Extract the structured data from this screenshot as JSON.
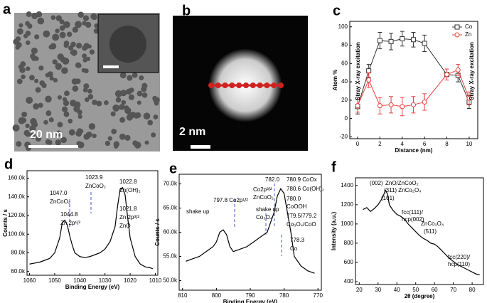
{
  "panels": {
    "a": {
      "label": "a",
      "scale": "20 nm"
    },
    "b": {
      "label": "b",
      "scale": "2 nm"
    },
    "c": "c",
    "d": "d",
    "e": "e",
    "f": "f"
  },
  "chart_data": [
    {
      "type": "line",
      "x_label": "Distance (nm)",
      "y_label": "Atom %",
      "x": [
        0,
        1,
        2,
        3,
        4,
        5,
        6,
        8,
        9,
        10
      ],
      "series": [
        {
          "name": "Co",
          "color": "#333333",
          "marker": "square",
          "values": [
            13,
            52,
            85,
            84,
            87,
            86,
            82,
            48,
            47,
            18
          ],
          "errors": [
            8,
            7,
            9,
            9,
            8,
            8,
            9,
            6,
            7,
            7
          ]
        },
        {
          "name": "Zn",
          "color": "#e8413c",
          "marker": "circle",
          "values": [
            14,
            42,
            14,
            15,
            13,
            15,
            18,
            48,
            53,
            22
          ],
          "errors": [
            7,
            8,
            9,
            9,
            10,
            9,
            9,
            6,
            6,
            7
          ]
        }
      ],
      "xlim": [
        -0.7,
        10.77
      ],
      "ylim": [
        -22,
        106
      ],
      "xticks": [
        0,
        2,
        4,
        6,
        8,
        10
      ],
      "yticks": [
        -20,
        0,
        20,
        40,
        60,
        80,
        100
      ],
      "legend": "upper right",
      "annotations": [
        "Stray X-ray excitation",
        "Stray X-ray excitation"
      ]
    },
    {
      "type": "line",
      "x_label": "Binding Energy (eV)",
      "y_label": "Counts / s",
      "x": [
        1060,
        1058,
        1056,
        1054,
        1052,
        1050,
        1048,
        1047,
        1046,
        1045,
        1044,
        1043,
        1042,
        1040,
        1038,
        1036,
        1034,
        1032,
        1030,
        1028,
        1026,
        1025,
        1024,
        1023,
        1022,
        1021,
        1020,
        1018,
        1016,
        1014,
        1012,
        1011
      ],
      "series": [
        {
          "color": "#000000",
          "values": [
            68000,
            69000,
            70000,
            72000,
            74000,
            80000,
            96000,
            112000,
            115000,
            110000,
            98000,
            88000,
            80000,
            76000,
            75000,
            76000,
            78000,
            80000,
            84000,
            92000,
            108000,
            130000,
            148000,
            150000,
            142000,
            118000,
            96000,
            76000,
            68000,
            65000,
            64000,
            63000
          ]
        }
      ],
      "xlim": [
        1061,
        1009
      ],
      "ylim": [
        56000,
        168000
      ],
      "xticks": [
        1060,
        1050,
        1040,
        1030,
        1020,
        1010
      ],
      "yticks": [
        {
          "value": 60000,
          "label": "60.0k"
        },
        {
          "value": 80000,
          "label": "80.0k"
        },
        {
          "value": 100000,
          "label": "100.0k"
        },
        {
          "value": 120000,
          "label": "120.0k"
        },
        {
          "value": 140000,
          "label": "140.0k"
        },
        {
          "value": 160000,
          "label": "160.0k"
        }
      ],
      "annotations": [
        "1047.0",
        "ZnCoO₂",
        "1044.8",
        "Zn 2p¹/²",
        "1023.9",
        "ZnCoO₂",
        "1022.8",
        "Zn(OH)₂",
        "1021.8",
        "Zn 2p³/²",
        "ZnO"
      ]
    },
    {
      "type": "line",
      "x_label": "Binding Energy (eV)",
      "y_label": "Counts / s",
      "x": [
        809,
        807,
        805,
        803,
        801,
        800,
        799,
        798,
        797,
        796,
        795,
        793,
        791,
        789,
        787,
        785,
        784,
        783,
        782,
        781,
        780,
        779,
        778,
        777,
        776,
        775,
        773,
        771
      ],
      "series": [
        {
          "color": "#000000",
          "values": [
            54000,
            54500,
            55000,
            56000,
            57000,
            58000,
            60000,
            60500,
            59500,
            57000,
            56000,
            56500,
            57000,
            58000,
            59000,
            60000,
            62000,
            64000,
            67500,
            69000,
            68000,
            64000,
            60000,
            55000,
            54000,
            53000,
            52000,
            51500
          ]
        }
      ],
      "xlim": [
        811,
        769
      ],
      "ylim": [
        48000,
        72000
      ],
      "xticks": [
        810,
        800,
        790,
        780,
        770
      ],
      "yticks": [
        {
          "value": 50000,
          "label": "50.0k"
        },
        {
          "value": 55000,
          "label": "55.0k"
        },
        {
          "value": 60000,
          "label": "60.0k"
        },
        {
          "value": 65000,
          "label": "65.0k"
        },
        {
          "value": 70000,
          "label": "70.0k"
        }
      ],
      "annotations": [
        "shake up",
        "797.8 Co2p¹/²",
        "Co2p³/²",
        "ZnCoO₂",
        "shake up",
        "Co₃O₄",
        "782.0",
        "780.9 CoOx",
        "780.6 Co(OH)₂",
        "780.0",
        "CoOOH",
        "779.5/779.2",
        "Co₃O₄/CoO",
        "778.3",
        "Co"
      ]
    },
    {
      "type": "line",
      "x_label": "2θ (degree)",
      "y_label": "Intensity (a.u.)",
      "x": [
        22,
        24,
        26,
        28,
        30,
        32,
        34,
        35,
        36,
        38,
        40,
        42,
        44,
        46,
        48,
        50,
        52,
        54,
        56,
        58,
        60,
        62,
        64,
        66,
        68,
        70,
        72,
        74,
        76,
        78,
        80,
        82,
        84
      ],
      "series": [
        {
          "color": "#000000",
          "values": [
            1150,
            1170,
            1130,
            1160,
            1200,
            1260,
            1350,
            1310,
            1200,
            1140,
            1100,
            1080,
            1050,
            1000,
            960,
            920,
            880,
            850,
            830,
            800,
            790,
            760,
            720,
            680,
            640,
            610,
            580,
            560,
            540,
            520,
            500,
            480,
            470
          ]
        }
      ],
      "xlim": [
        18,
        86
      ],
      "ylim": [
        370,
        1480
      ],
      "xticks": [
        20,
        30,
        40,
        50,
        60,
        70,
        80
      ],
      "yticks": [
        400,
        600,
        800,
        1000,
        1200,
        1400
      ],
      "annotations": [
        "(002)",
        "ZnO/ZnCoO₂",
        "(311) ZnCo₂O₄",
        "(101)",
        "fcc(111)/",
        "hcp(002)",
        "ZnCo₂O₄",
        "(511)",
        "fcc(220)/",
        "hcp(110)"
      ]
    }
  ]
}
